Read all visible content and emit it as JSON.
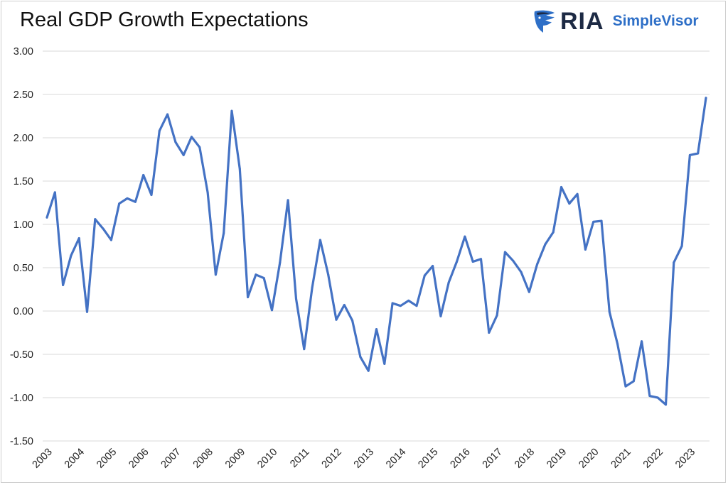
{
  "title": "Real GDP Growth Expectations",
  "logo": {
    "brand": "RIA",
    "product": "SimpleVisor",
    "emblem": "eagle-icon"
  },
  "colors": {
    "line": "#4472C4",
    "grid": "#d9d9d9",
    "brand_dark": "#1d2a44",
    "brand_blue": "#2e6fc7"
  },
  "chart_data": {
    "type": "line",
    "title": "Real GDP Growth Expectations",
    "xlabel": "",
    "ylabel": "",
    "ylim": [
      -1.5,
      3.0
    ],
    "yticks": [
      "3.00",
      "2.50",
      "2.00",
      "1.50",
      "1.00",
      "0.50",
      "0.00",
      "-0.50",
      "-1.00",
      "-1.50"
    ],
    "xticks": [
      "2003",
      "2004",
      "2005",
      "2006",
      "2007",
      "2008",
      "2009",
      "2010",
      "2011",
      "2012",
      "2013",
      "2014",
      "2015",
      "2016",
      "2017",
      "2018",
      "2019",
      "2020",
      "2021",
      "2022",
      "2023"
    ],
    "grid": true,
    "legend": "none",
    "frequency": "quarterly",
    "series": [
      {
        "values": [
          1.08,
          1.37,
          0.3,
          0.64,
          0.84,
          -0.01,
          1.06,
          0.95,
          0.82,
          1.24,
          1.3,
          1.26,
          1.57,
          1.34,
          2.08,
          2.27,
          1.95,
          1.8,
          2.01,
          1.89,
          1.37,
          0.42,
          0.9,
          2.31,
          1.64,
          0.16,
          0.42,
          0.38,
          0.01,
          0.56,
          1.28,
          0.14,
          -0.44,
          0.27,
          0.82,
          0.42,
          -0.1,
          0.07,
          -0.11,
          -0.53,
          -0.69,
          -0.21,
          -0.61,
          0.09,
          0.06,
          0.12,
          0.06,
          0.41,
          0.52,
          -0.06,
          0.33,
          0.57,
          0.86,
          0.57,
          0.6,
          -0.25,
          -0.05,
          0.68,
          0.58,
          0.45,
          0.22,
          0.54,
          0.77,
          0.91,
          1.43,
          1.24,
          1.35,
          0.71,
          1.03,
          1.04,
          -0.01,
          -0.38,
          -0.87,
          -0.81,
          -0.35,
          -0.98,
          -1.0,
          -1.08,
          0.56,
          0.75,
          1.8,
          1.82,
          2.46
        ]
      }
    ]
  }
}
